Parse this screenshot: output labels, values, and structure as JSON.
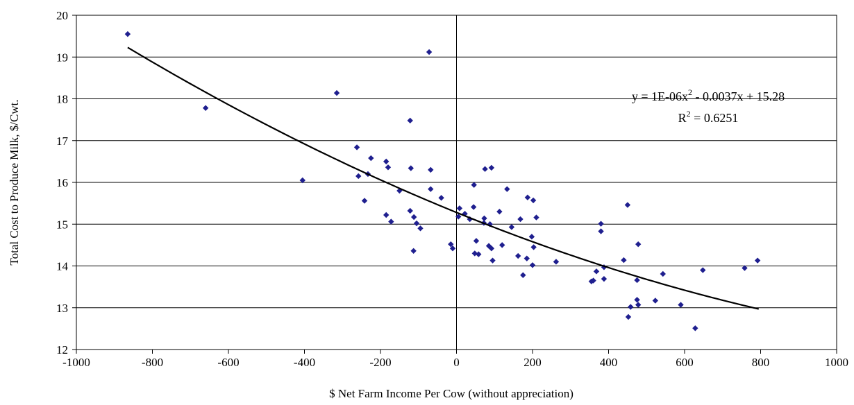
{
  "chart_data": {
    "type": "scatter",
    "title": "",
    "xlabel": "$ Net Farm Income Per Cow (without appreciation)",
    "ylabel": "Total Cost to Produce Milk, $/Cwt.",
    "xlim": [
      -1000,
      1000
    ],
    "ylim": [
      12,
      20
    ],
    "x_ticks": [
      -1000,
      -800,
      -600,
      -400,
      -200,
      0,
      200,
      400,
      600,
      800,
      1000
    ],
    "y_ticks": [
      12,
      13,
      14,
      15,
      16,
      17,
      18,
      19,
      20
    ],
    "grid": "horizontal",
    "legend": "none",
    "point_color": "#1f1f8f",
    "trendline": {
      "kind": "polynomial-2",
      "a": 1e-06,
      "b": -0.0037,
      "c": 15.28,
      "x_range": [
        -865,
        795
      ],
      "equation_main": "y = 1E-06x",
      "equation_sup": "2",
      "equation_rest": " - 0.0037x + 15.28",
      "r2_main": "R",
      "r2_sup": "2",
      "r2_rest": " = 0.6251"
    },
    "points": [
      [
        -865,
        19.55
      ],
      [
        -660,
        17.78
      ],
      [
        -405,
        16.05
      ],
      [
        -315,
        18.14
      ],
      [
        -72,
        19.12
      ],
      [
        -262,
        16.84
      ],
      [
        -258,
        16.15
      ],
      [
        -242,
        15.56
      ],
      [
        -233,
        16.2
      ],
      [
        -225,
        16.58
      ],
      [
        -185,
        16.5
      ],
      [
        -180,
        16.36
      ],
      [
        -185,
        15.22
      ],
      [
        -172,
        15.06
      ],
      [
        -150,
        15.8
      ],
      [
        -122,
        17.48
      ],
      [
        -120,
        16.34
      ],
      [
        -122,
        15.32
      ],
      [
        -112,
        15.17
      ],
      [
        -105,
        15.02
      ],
      [
        -113,
        14.36
      ],
      [
        -95,
        14.9
      ],
      [
        -68,
        16.3
      ],
      [
        -68,
        15.84
      ],
      [
        -40,
        15.63
      ],
      [
        -15,
        14.52
      ],
      [
        -10,
        14.42
      ],
      [
        8,
        15.38
      ],
      [
        5,
        15.18
      ],
      [
        22,
        15.25
      ],
      [
        35,
        15.12
      ],
      [
        46,
        15.94
      ],
      [
        45,
        15.41
      ],
      [
        48,
        14.3
      ],
      [
        52,
        14.6
      ],
      [
        58,
        14.28
      ],
      [
        75,
        16.32
      ],
      [
        92,
        16.35
      ],
      [
        73,
        15.14
      ],
      [
        72,
        15.03
      ],
      [
        88,
        15.0
      ],
      [
        85,
        14.48
      ],
      [
        92,
        14.42
      ],
      [
        95,
        14.13
      ],
      [
        113,
        15.3
      ],
      [
        120,
        14.5
      ],
      [
        133,
        15.84
      ],
      [
        145,
        14.93
      ],
      [
        162,
        14.24
      ],
      [
        168,
        15.12
      ],
      [
        175,
        13.78
      ],
      [
        185,
        14.18
      ],
      [
        187,
        15.64
      ],
      [
        198,
        14.7
      ],
      [
        200,
        14.02
      ],
      [
        202,
        15.57
      ],
      [
        203,
        14.45
      ],
      [
        210,
        15.16
      ],
      [
        262,
        14.1
      ],
      [
        355,
        13.63
      ],
      [
        360,
        13.65
      ],
      [
        368,
        13.87
      ],
      [
        380,
        15.01
      ],
      [
        380,
        14.83
      ],
      [
        388,
        13.97
      ],
      [
        388,
        13.69
      ],
      [
        440,
        14.14
      ],
      [
        450,
        15.46
      ],
      [
        452,
        12.78
      ],
      [
        458,
        13.02
      ],
      [
        475,
        13.66
      ],
      [
        475,
        13.19
      ],
      [
        478,
        13.07
      ],
      [
        478,
        14.52
      ],
      [
        523,
        13.17
      ],
      [
        543,
        13.81
      ],
      [
        590,
        13.07
      ],
      [
        628,
        12.51
      ],
      [
        648,
        13.9
      ],
      [
        758,
        13.95
      ],
      [
        792,
        14.13
      ]
    ]
  }
}
